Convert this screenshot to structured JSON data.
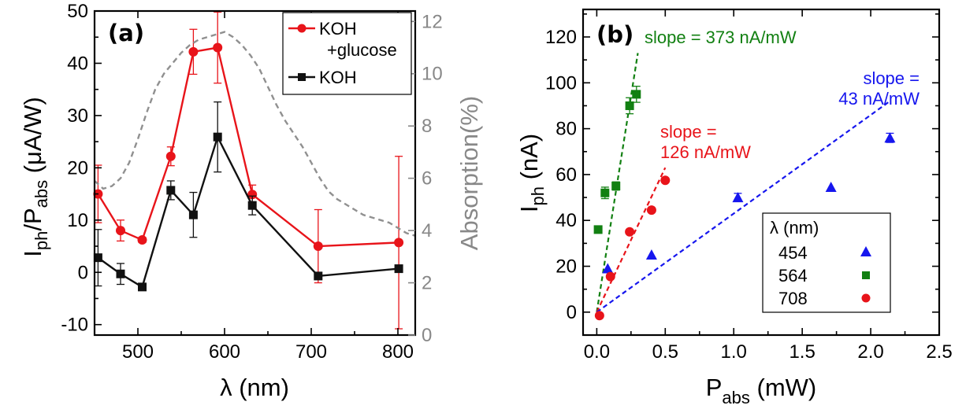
{
  "chart_data": [
    {
      "type": "line",
      "panel_label": "(a)",
      "xlabel": "λ (nm)",
      "ylabel_main": "I",
      "ylabel_sub1": "ph",
      "ylabel_mid": "/P",
      "ylabel_sub2": "abs",
      "ylabel_unit": " (μA/W)",
      "y2label": "Absorption(%)",
      "xlim": [
        450,
        820
      ],
      "ylim": [
        -12,
        50
      ],
      "y2lim": [
        0,
        12.4
      ],
      "xticks": [
        500,
        600,
        700,
        800
      ],
      "yticks": [
        -10,
        0,
        10,
        20,
        30,
        40,
        50
      ],
      "y2ticks": [
        0,
        2,
        4,
        6,
        8,
        10,
        12
      ],
      "legend": {
        "line1": "KOH",
        "line2": "+glucose",
        "line3": "KOH",
        "position": "top-right"
      },
      "series": [
        {
          "name": "KOH +glucose",
          "color": "#e8141a",
          "marker": "circle",
          "x": [
            454,
            480,
            505,
            538,
            564,
            592,
            632,
            708,
            801
          ],
          "y": [
            15.0,
            8.0,
            6.2,
            22.2,
            42.2,
            43.0,
            14.9,
            5.0,
            5.7
          ],
          "err": [
            5.5,
            2.0,
            0.5,
            1.8,
            4.3,
            6.8,
            1.8,
            7.0,
            16.5
          ]
        },
        {
          "name": "KOH",
          "color": "#111111",
          "marker": "square",
          "x": [
            454,
            480,
            505,
            538,
            564,
            592,
            632,
            708,
            801
          ],
          "y": [
            2.8,
            -0.3,
            -2.8,
            15.7,
            11.0,
            25.9,
            12.8,
            -0.7,
            0.7
          ],
          "err": [
            5.4,
            2.0,
            0.4,
            1.8,
            4.3,
            6.7,
            1.8,
            0.5,
            0.5
          ]
        },
        {
          "name": "Absorption",
          "color": "#909090",
          "style": "dashed",
          "axis": "right",
          "x": [
            450,
            460,
            470,
            480,
            490,
            500,
            510,
            520,
            530,
            540,
            550,
            560,
            570,
            580,
            590,
            600,
            610,
            620,
            630,
            640,
            650,
            660,
            670,
            680,
            690,
            700,
            710,
            720,
            730,
            740,
            750,
            760,
            770,
            780,
            790,
            800,
            810,
            820
          ],
          "y": [
            5.9,
            5.6,
            5.7,
            6.0,
            6.6,
            7.5,
            8.5,
            9.4,
            10.0,
            10.4,
            10.8,
            11.1,
            11.3,
            11.4,
            11.5,
            11.6,
            11.4,
            11.1,
            10.7,
            10.2,
            9.5,
            8.8,
            8.2,
            7.7,
            7.2,
            6.6,
            6.0,
            5.5,
            5.2,
            5.0,
            4.8,
            4.6,
            4.5,
            4.4,
            4.3,
            4.1,
            3.9,
            3.8
          ]
        }
      ]
    },
    {
      "type": "scatter",
      "panel_label": "(b)",
      "xlabel_main": "P",
      "xlabel_sub": "abs",
      "xlabel_unit": " (mW)",
      "ylabel_main": "I",
      "ylabel_sub": "ph",
      "ylabel_unit": " (nA)",
      "xlim": [
        -0.1,
        2.5
      ],
      "ylim": [
        -10,
        132
      ],
      "xticks": [
        0.0,
        0.5,
        1.0,
        1.5,
        2.0,
        2.5
      ],
      "xtick_labels": [
        "0.0",
        "0.5",
        "1.0",
        "1.5",
        "2.0",
        "2.5"
      ],
      "yticks": [
        0,
        20,
        40,
        60,
        80,
        100,
        120
      ],
      "legend": {
        "title": "λ (nm)",
        "position": "bottom-right",
        "entries": [
          "454",
          "564",
          "708"
        ]
      },
      "series": [
        {
          "name": "454",
          "color": "#1616ee",
          "marker": "triangle",
          "x": [
            0.08,
            0.4,
            1.03,
            1.71,
            2.14
          ],
          "y": [
            19,
            25,
            50,
            54.5,
            76
          ],
          "err": [
            0,
            0,
            1.8,
            0,
            2.0
          ]
        },
        {
          "name": "564",
          "color": "#128012",
          "marker": "square",
          "x": [
            0.01,
            0.06,
            0.14,
            0.24,
            0.29
          ],
          "y": [
            36,
            52,
            55,
            90,
            95
          ],
          "err": [
            0,
            2.5,
            1.8,
            3.5,
            3.5
          ]
        },
        {
          "name": "708",
          "color": "#e8141a",
          "marker": "circle",
          "x": [
            0.02,
            0.1,
            0.24,
            0.4,
            0.5
          ],
          "y": [
            -1.5,
            15.5,
            35,
            44.5,
            57.5
          ],
          "err": [
            0,
            0,
            0,
            0,
            0
          ]
        }
      ],
      "fit_lines": [
        {
          "color": "#128012",
          "slope_mA": 373,
          "x": [
            0.0,
            0.3
          ],
          "y": [
            0,
            113
          ]
        },
        {
          "color": "#e8141a",
          "slope_mA": 126,
          "x": [
            0.0,
            0.5
          ],
          "y": [
            0,
            63
          ]
        },
        {
          "color": "#1616ee",
          "slope_mA": 43,
          "x": [
            0.0,
            2.14
          ],
          "y": [
            0,
            92
          ]
        }
      ],
      "annotations": {
        "green_slope": "slope = 373 nA/mW",
        "red_slope_1": "slope =",
        "red_slope_2": "126 nA/mW",
        "blue_slope_1": "slope =",
        "blue_slope_2": "43 nA/mW"
      }
    }
  ]
}
